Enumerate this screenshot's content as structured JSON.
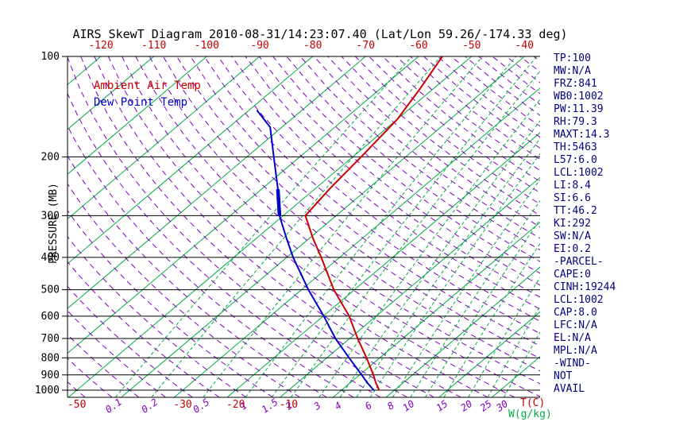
{
  "title": "AIRS SkewT Diagram 2010-08-31/14:23:07.40 (Lat/Lon 59.26/-174.33 deg)",
  "legend": {
    "temp": "Ambient Air Temp",
    "dew": "Dew Point Temp"
  },
  "axes": {
    "pressure_label": "PRESSURE (MB)",
    "temp_unit": "T(C)",
    "mixing_unit": "W(g/kg)"
  },
  "stats": [
    "TP:100",
    "MW:N/A",
    "FRZ:841",
    "WB0:1002",
    "PW:11.39",
    "RH:79.3",
    "MAXT:14.3",
    "TH:5463",
    "L57:6.0",
    "LCL:1002",
    "LI:8.4",
    "SI:6.6",
    "TT:46.2",
    "KI:292",
    "SW:N/A",
    "EI:0.2",
    "-PARCEL-",
    "CAPE:0",
    "CINH:19244",
    "LCL:1002",
    "CAP:8.0",
    "LFC:N/A",
    "EL:N/A",
    "MPL:N/A",
    "-WIND-",
    "NOT",
    "AVAIL"
  ],
  "colors": {
    "isotherm_green": "#00aa44",
    "adiabat_purple": "#8000c0",
    "temp_red": "#cc0000",
    "dew_blue": "#0000cc",
    "stats_navy": "#000080",
    "axis_black": "#000000"
  },
  "chart_data": {
    "type": "line",
    "title": "AIRS SkewT Diagram 2010-08-31/14:23:07.40 (Lat/Lon 59.26/-174.33 deg)",
    "x_axis": {
      "unit": "deg C",
      "top_ticks_c": [
        -120,
        -110,
        -100,
        -90,
        -80,
        -70,
        -60,
        -50,
        -40
      ],
      "bottom_ticks_c": [
        -50,
        -30,
        -20,
        -10
      ]
    },
    "y_axis": {
      "label": "PRESSURE (MB)",
      "scale": "log",
      "ticks_mb": [
        100,
        200,
        300,
        400,
        500,
        600,
        700,
        800,
        900,
        1000
      ],
      "range_mb": [
        100,
        1050
      ]
    },
    "grid": {
      "isotherms_c": [
        -120,
        -110,
        -100,
        -90,
        -80,
        -70,
        -60,
        -50,
        -40,
        -30,
        -20,
        -10,
        0,
        10,
        20,
        30
      ],
      "mixing_ratio_lines_gkg": [
        0.1,
        0.2,
        0.5,
        1,
        1.5,
        2,
        3,
        4,
        5,
        6,
        8,
        10,
        12,
        15,
        20,
        25,
        30
      ],
      "mixing_ratio_labels_gkg": [
        0.1,
        0.2,
        0.5,
        1,
        1.5,
        2,
        3,
        4,
        6,
        8,
        10,
        15,
        20,
        25,
        30
      ],
      "dry_adiabats_c": {
        "start": -50,
        "end": 185,
        "step": 5
      }
    },
    "series": [
      {
        "name": "Ambient Air Temp",
        "color": "#cc0000",
        "points_p_t": [
          [
            100,
            -55.5
          ],
          [
            125,
            -52.5
          ],
          [
            154,
            -50.0
          ],
          [
            200,
            -48.4
          ],
          [
            250,
            -47.2
          ],
          [
            300,
            -45.8
          ],
          [
            350,
            -39.4
          ],
          [
            400,
            -33.5
          ],
          [
            500,
            -23.9
          ],
          [
            600,
            -15.1
          ],
          [
            700,
            -8.5
          ],
          [
            800,
            -2.5
          ],
          [
            900,
            2.6
          ],
          [
            950,
            4.8
          ],
          [
            1002,
            7.2
          ]
        ]
      },
      {
        "name": "Dew Point Temp",
        "color": "#0000cc",
        "points_p_t": [
          [
            145,
            -78.5
          ],
          [
            163,
            -72.2
          ],
          [
            200,
            -64.9
          ],
          [
            250,
            -56.9
          ],
          [
            300,
            -50.7
          ],
          [
            350,
            -44.4
          ],
          [
            400,
            -38.8
          ],
          [
            500,
            -28.7
          ],
          [
            600,
            -19.9
          ],
          [
            700,
            -12.7
          ],
          [
            800,
            -5.8
          ],
          [
            900,
            0.4
          ],
          [
            950,
            3.2
          ],
          [
            1002,
            6.2
          ]
        ]
      }
    ]
  }
}
